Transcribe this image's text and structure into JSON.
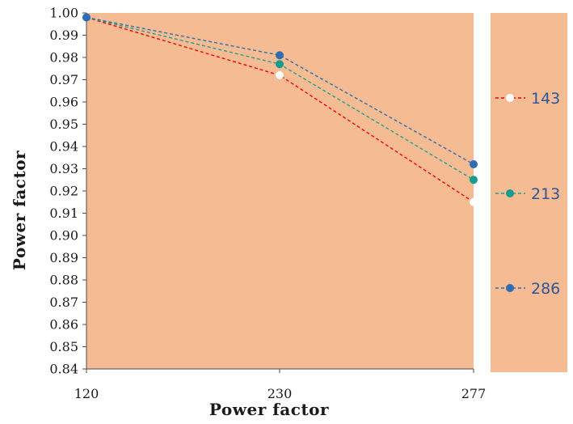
{
  "colors": {
    "plot_bg": "#f5bb93",
    "legend_bg": "#f5bb93",
    "axis": "#4d4d4d",
    "legend_text": "#2f5597"
  },
  "chart_data": {
    "type": "line",
    "title": "",
    "xlabel": "Power factor",
    "ylabel": "Power factor",
    "categories": [
      "120",
      "230",
      "277"
    ],
    "ylim": [
      0.84,
      1.0
    ],
    "yticks": [
      "0.84",
      "0.85",
      "0.86",
      "0.87",
      "0.88",
      "0.89",
      "0.90",
      "0.91",
      "0.92",
      "0.93",
      "0.94",
      "0.95",
      "0.96",
      "0.97",
      "0.98",
      "0.99",
      "1.00"
    ],
    "grid": false,
    "legend_position": "right",
    "series": [
      {
        "name": "143",
        "values": [
          0.998,
          0.972,
          0.915
        ],
        "line_color": "#ff0000",
        "marker_color": "#ffffff"
      },
      {
        "name": "213",
        "values": [
          0.998,
          0.977,
          0.925
        ],
        "line_color": "#20a090",
        "marker_color": "#159c8c"
      },
      {
        "name": "286",
        "values": [
          0.998,
          0.981,
          0.932
        ],
        "line_color": "#2e6db4",
        "marker_color": "#2e6db4"
      }
    ]
  }
}
